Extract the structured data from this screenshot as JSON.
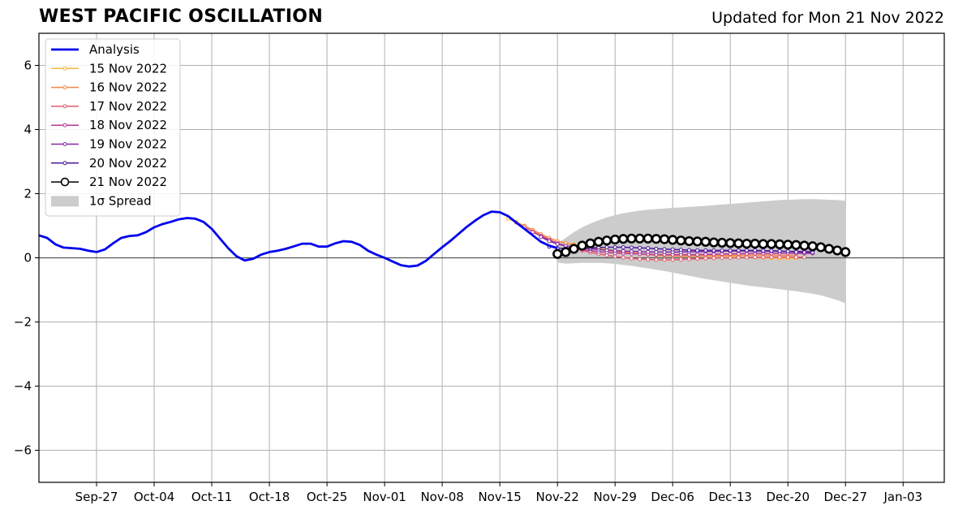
{
  "header": {
    "title": "WEST PACIFIC OSCILLATION",
    "updated": "Updated for Mon 21 Nov 2022"
  },
  "chart_data": {
    "type": "line",
    "title": "WEST PACIFIC OSCILLATION",
    "subtitle": "Updated for Mon 21 Nov 2022",
    "xlabel": "",
    "ylabel": "",
    "x_axis": {
      "type": "date",
      "range": [
        "2022-09-20",
        "2023-01-08"
      ],
      "ticks": [
        "2022-09-27",
        "2022-10-04",
        "2022-10-11",
        "2022-10-18",
        "2022-10-25",
        "2022-11-01",
        "2022-11-08",
        "2022-11-15",
        "2022-11-22",
        "2022-11-29",
        "2022-12-06",
        "2022-12-13",
        "2022-12-20",
        "2022-12-27",
        "2023-01-03"
      ],
      "tick_labels": [
        "Sep-27",
        "Oct-04",
        "Oct-11",
        "Oct-18",
        "Oct-25",
        "Nov-01",
        "Nov-08",
        "Nov-15",
        "Nov-22",
        "Nov-29",
        "Dec-06",
        "Dec-13",
        "Dec-20",
        "Dec-27",
        "Jan-03"
      ]
    },
    "ylim": [
      -7,
      7
    ],
    "yticks": [
      -6,
      -4,
      -2,
      0,
      2,
      4,
      6
    ],
    "ytick_labels": [
      "−6",
      "−4",
      "−2",
      "0",
      "2",
      "4",
      "6"
    ],
    "grid": true,
    "legend_position": "top-left",
    "colors": {
      "analysis": "#0000ee",
      "spread": "#cccccc",
      "zero_line": "#555555"
    },
    "analysis": {
      "name": "Analysis",
      "start": "2022-09-20",
      "values": [
        0.7,
        0.62,
        0.42,
        0.32,
        0.3,
        0.28,
        0.22,
        0.18,
        0.26,
        0.45,
        0.62,
        0.68,
        0.7,
        0.8,
        0.95,
        1.05,
        1.12,
        1.2,
        1.24,
        1.22,
        1.12,
        0.9,
        0.6,
        0.3,
        0.05,
        -0.08,
        -0.03,
        0.1,
        0.18,
        0.22,
        0.28,
        0.36,
        0.44,
        0.44,
        0.35,
        0.35,
        0.45,
        0.52,
        0.5,
        0.4,
        0.22,
        0.1,
        0.0,
        -0.12,
        -0.23,
        -0.27,
        -0.24,
        -0.1,
        0.12,
        0.33,
        0.53,
        0.75,
        0.97,
        1.16,
        1.33,
        1.44,
        1.42,
        1.3,
        1.1,
        0.9,
        0.7,
        0.5,
        0.38,
        0.3
      ]
    },
    "forecasts": [
      {
        "name": "15 Nov 2022",
        "color": "#f6b73c",
        "start": "2022-11-16",
        "values": [
          1.22,
          1.12,
          1.0,
          0.86,
          0.72,
          0.6,
          0.52,
          0.46,
          0.42,
          0.38,
          0.34,
          0.3,
          0.26,
          0.22,
          0.19,
          0.16,
          0.13,
          0.1,
          0.08,
          0.07,
          0.06,
          0.05,
          0.05,
          0.05,
          0.05,
          0.05,
          0.05,
          0.04,
          0.03,
          0.02,
          0.01,
          0.0,
          -0.01,
          -0.02,
          -0.02,
          -0.01
        ]
      },
      {
        "name": "16 Nov 2022",
        "color": "#f5884a",
        "start": "2022-11-17",
        "values": [
          1.1,
          0.99,
          0.87,
          0.74,
          0.62,
          0.52,
          0.45,
          0.4,
          0.35,
          0.31,
          0.27,
          0.23,
          0.2,
          0.17,
          0.14,
          0.12,
          0.1,
          0.08,
          0.07,
          0.06,
          0.06,
          0.06,
          0.06,
          0.07,
          0.07,
          0.07,
          0.08,
          0.08,
          0.08,
          0.08,
          0.08,
          0.08,
          0.07,
          0.07,
          0.07
        ]
      },
      {
        "name": "17 Nov 2022",
        "color": "#e15b6e",
        "start": "2022-11-18",
        "values": [
          0.95,
          0.82,
          0.68,
          0.56,
          0.45,
          0.36,
          0.29,
          0.23,
          0.17,
          0.12,
          0.08,
          0.04,
          0.01,
          -0.02,
          -0.04,
          -0.05,
          -0.06,
          -0.06,
          -0.06,
          -0.05,
          -0.04,
          -0.03,
          -0.02,
          -0.01,
          0.0,
          0.0,
          0.01,
          0.01,
          0.02,
          0.02,
          0.02,
          0.02,
          0.02,
          0.02,
          0.02
        ]
      },
      {
        "name": "18 Nov 2022",
        "color": "#b7378e",
        "start": "2022-11-19",
        "values": [
          0.8,
          0.68,
          0.56,
          0.45,
          0.37,
          0.31,
          0.26,
          0.22,
          0.19,
          0.17,
          0.15,
          0.14,
          0.13,
          0.12,
          0.11,
          0.1,
          0.1,
          0.1,
          0.1,
          0.1,
          0.1,
          0.11,
          0.11,
          0.12,
          0.12,
          0.13,
          0.13,
          0.14,
          0.14,
          0.14,
          0.14,
          0.14,
          0.14,
          0.14,
          0.14
        ]
      },
      {
        "name": "19 Nov 2022",
        "color": "#8428a5",
        "start": "2022-11-20",
        "values": [
          0.65,
          0.52,
          0.43,
          0.37,
          0.33,
          0.3,
          0.28,
          0.26,
          0.24,
          0.22,
          0.21,
          0.2,
          0.19,
          0.18,
          0.18,
          0.18,
          0.18,
          0.18,
          0.19,
          0.19,
          0.2,
          0.2,
          0.21,
          0.21,
          0.21,
          0.21,
          0.21,
          0.21,
          0.21,
          0.2,
          0.2,
          0.2,
          0.2,
          0.2
        ]
      },
      {
        "name": "20 Nov 2022",
        "color": "#4a1a9e",
        "start": "2022-11-21",
        "values": [
          0.35,
          0.3,
          0.29,
          0.29,
          0.3,
          0.31,
          0.32,
          0.33,
          0.33,
          0.33,
          0.32,
          0.31,
          0.3,
          0.28,
          0.27,
          0.26,
          0.25,
          0.24,
          0.23,
          0.23,
          0.23,
          0.23,
          0.23,
          0.23,
          0.23,
          0.23,
          0.22,
          0.22,
          0.21,
          0.2,
          0.18,
          0.17,
          0.16
        ]
      }
    ],
    "latest": {
      "name": "21 Nov 2022",
      "color": "#000000",
      "start": "2022-11-22",
      "values": [
        0.12,
        0.18,
        0.28,
        0.38,
        0.45,
        0.5,
        0.54,
        0.57,
        0.59,
        0.6,
        0.6,
        0.6,
        0.59,
        0.58,
        0.56,
        0.54,
        0.52,
        0.51,
        0.5,
        0.48,
        0.47,
        0.46,
        0.45,
        0.44,
        0.44,
        0.43,
        0.43,
        0.42,
        0.41,
        0.4,
        0.38,
        0.36,
        0.33,
        0.28,
        0.23,
        0.18
      ]
    },
    "spread": {
      "name": "1σ Spread",
      "start": "2022-11-22",
      "upper": [
        0.45,
        0.62,
        0.8,
        0.95,
        1.07,
        1.17,
        1.26,
        1.33,
        1.39,
        1.43,
        1.47,
        1.5,
        1.52,
        1.54,
        1.56,
        1.57,
        1.59,
        1.6,
        1.62,
        1.64,
        1.66,
        1.68,
        1.7,
        1.72,
        1.74,
        1.76,
        1.78,
        1.8,
        1.81,
        1.82,
        1.83,
        1.83,
        1.82,
        1.81,
        1.8,
        1.78
      ],
      "lower": [
        -0.15,
        -0.18,
        -0.17,
        -0.16,
        -0.16,
        -0.16,
        -0.17,
        -0.19,
        -0.22,
        -0.25,
        -0.29,
        -0.33,
        -0.37,
        -0.41,
        -0.46,
        -0.51,
        -0.56,
        -0.61,
        -0.66,
        -0.7,
        -0.74,
        -0.78,
        -0.82,
        -0.86,
        -0.89,
        -0.92,
        -0.95,
        -0.98,
        -1.01,
        -1.04,
        -1.08,
        -1.12,
        -1.17,
        -1.24,
        -1.32,
        -1.42
      ]
    }
  }
}
